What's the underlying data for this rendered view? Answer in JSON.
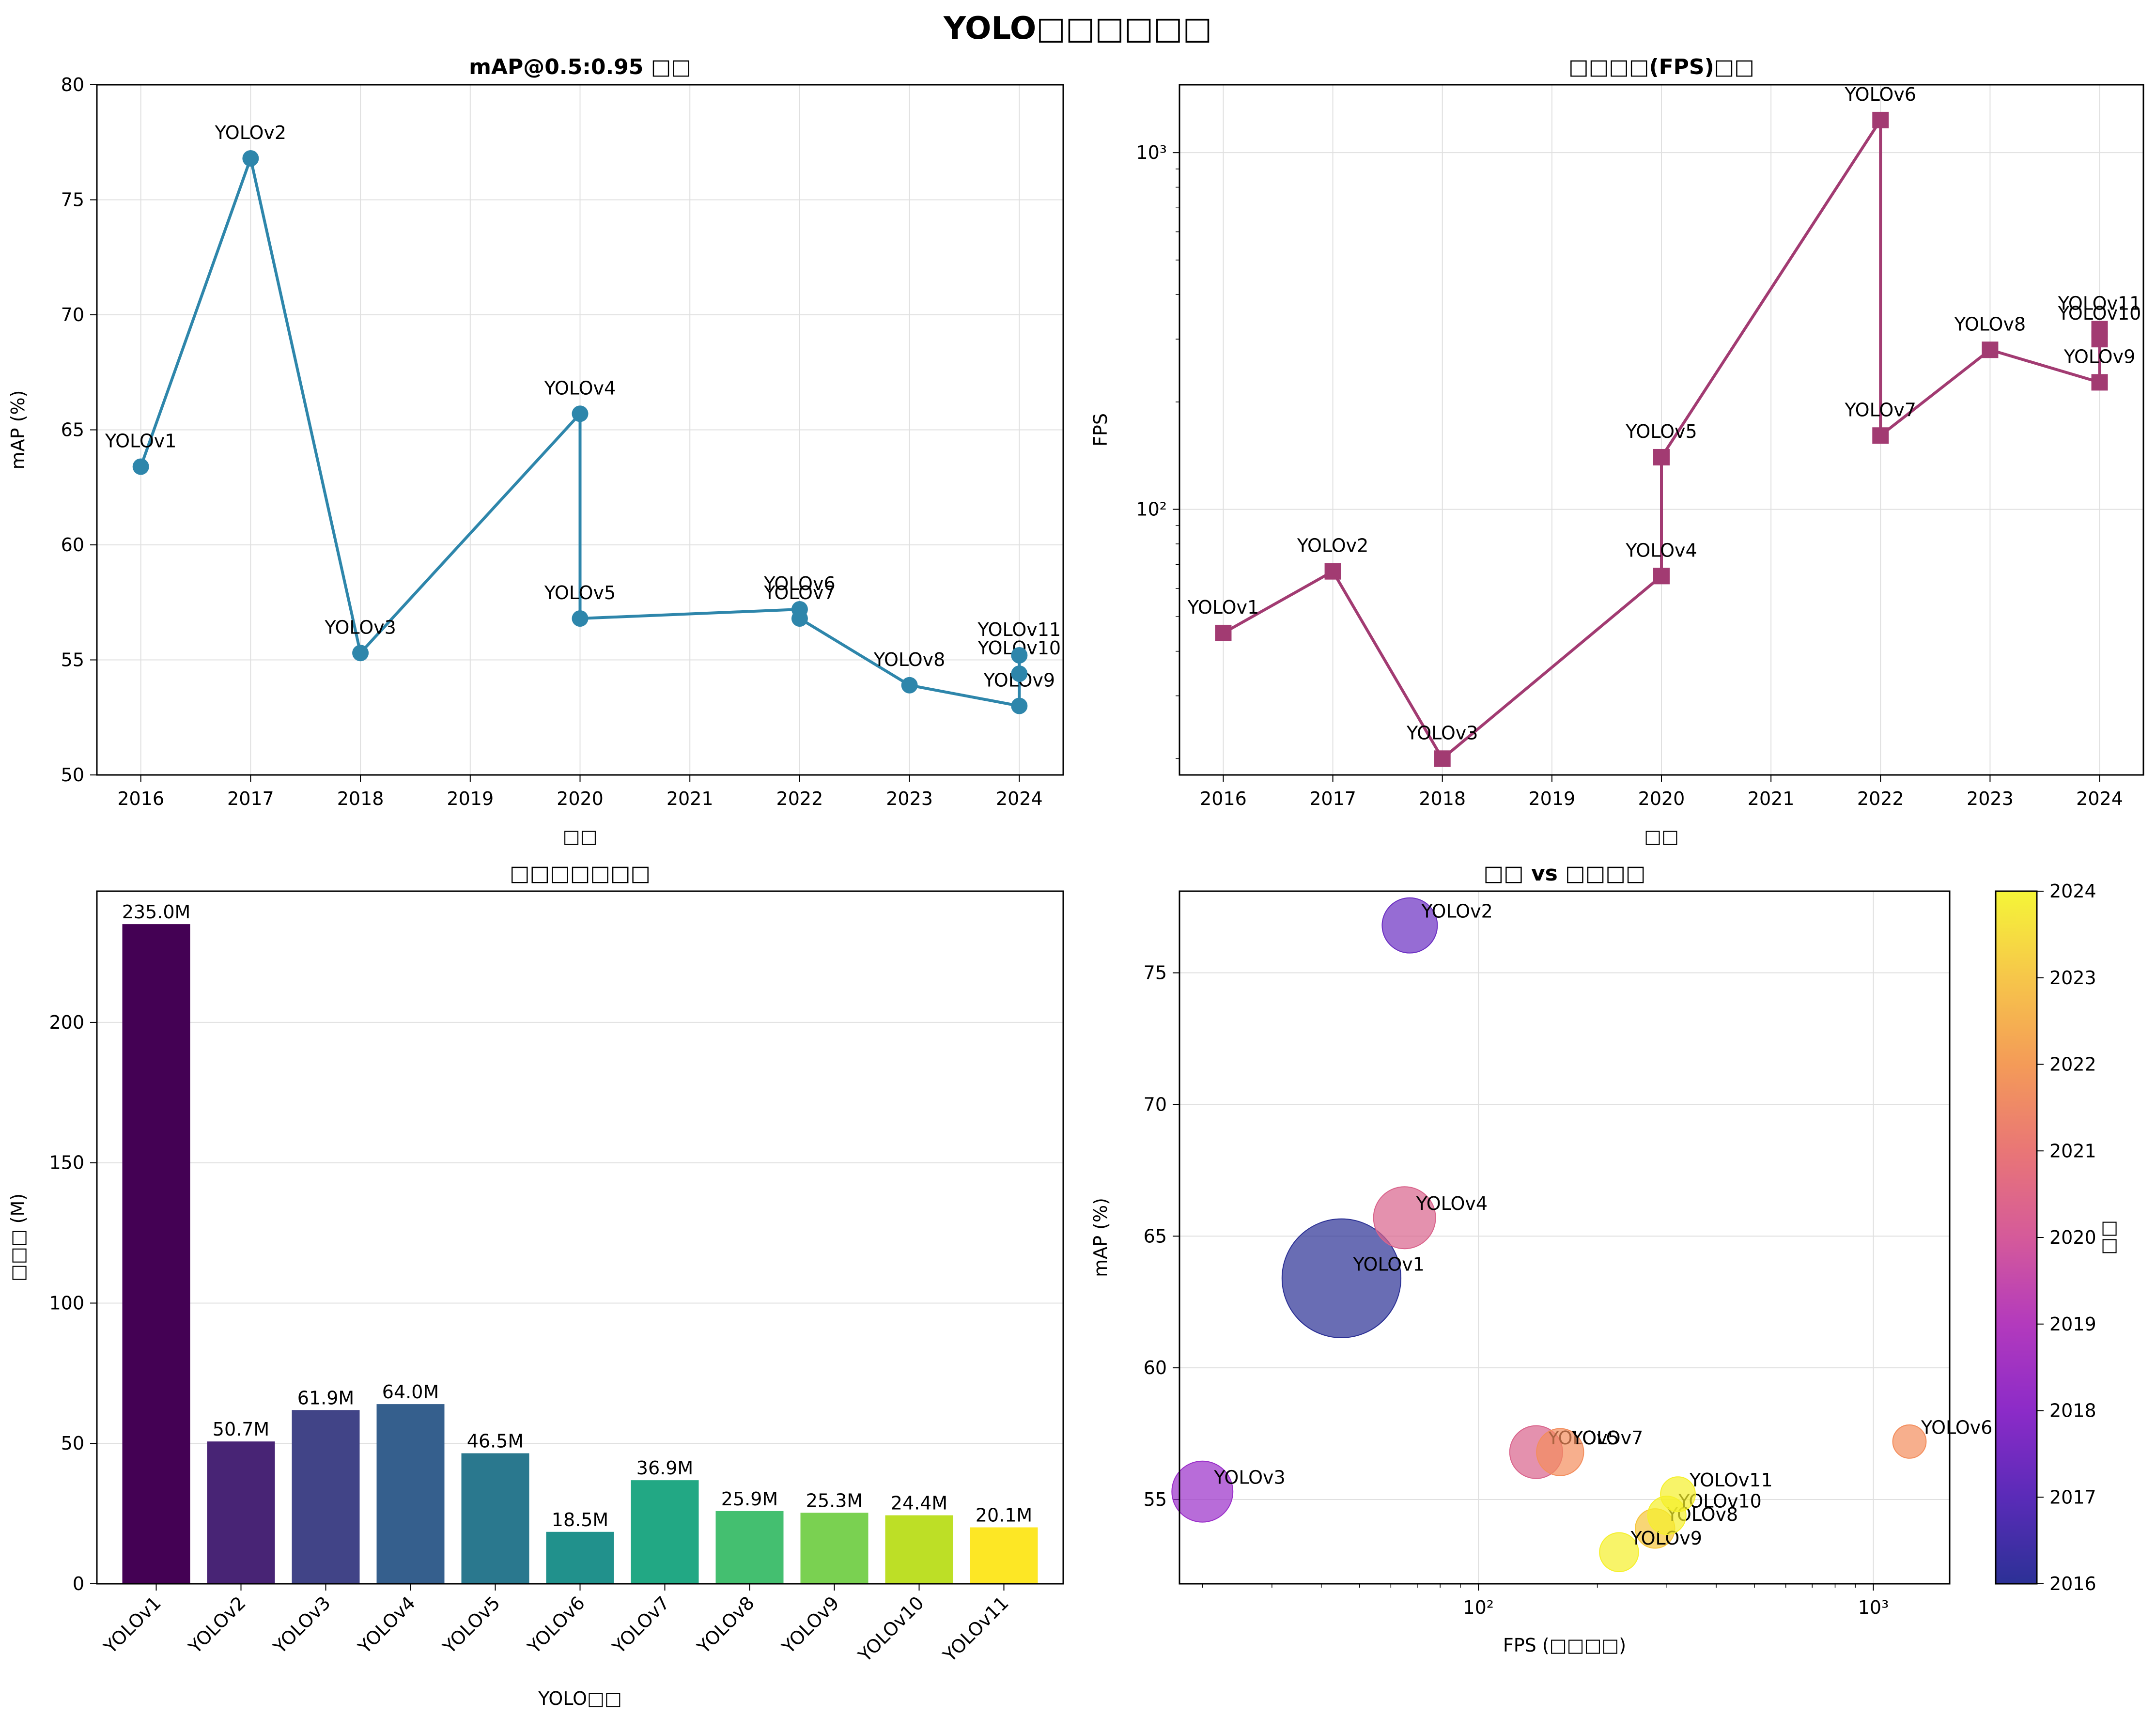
{
  "figure": {
    "suptitle": "YOLO□□□□□□"
  },
  "chart_data": [
    {
      "type": "line",
      "title": "mAP@0.5:0.95 □□",
      "xlabel": "□□",
      "ylabel": "mAP (%)",
      "xlim": [
        2015.6,
        2024.4
      ],
      "ylim": [
        50,
        80
      ],
      "xticks": [
        2016,
        2017,
        2018,
        2019,
        2020,
        2021,
        2022,
        2023,
        2024
      ],
      "yticks": [
        50,
        55,
        60,
        65,
        70,
        75,
        80
      ],
      "grid": true,
      "color": "#2e86ab",
      "marker": "circle",
      "points": [
        {
          "label": "YOLOv1",
          "x": 2016,
          "y": 63.4
        },
        {
          "label": "YOLOv2",
          "x": 2017,
          "y": 76.8
        },
        {
          "label": "YOLOv3",
          "x": 2018,
          "y": 55.3
        },
        {
          "label": "YOLOv4",
          "x": 2020,
          "y": 65.7
        },
        {
          "label": "YOLOv5",
          "x": 2020,
          "y": 56.8
        },
        {
          "label": "YOLOv6",
          "x": 2022,
          "y": 57.2
        },
        {
          "label": "YOLOv7",
          "x": 2022,
          "y": 56.8
        },
        {
          "label": "YOLOv8",
          "x": 2023,
          "y": 53.9
        },
        {
          "label": "YOLOv9",
          "x": 2024,
          "y": 53.0
        },
        {
          "label": "YOLOv10",
          "x": 2024,
          "y": 54.4
        },
        {
          "label": "YOLOv11",
          "x": 2024,
          "y": 55.2
        }
      ]
    },
    {
      "type": "line",
      "title": "□□□□(FPS)□□",
      "xlabel": "□□",
      "ylabel": "FPS",
      "xlim": [
        2015.6,
        2024.4
      ],
      "ylim": [
        18,
        1550
      ],
      "yscale": "log",
      "xticks": [
        2016,
        2017,
        2018,
        2019,
        2020,
        2021,
        2022,
        2023,
        2024
      ],
      "yticks": [
        100,
        1000
      ],
      "ytick_labels": [
        "10²",
        "10³"
      ],
      "grid": true,
      "color": "#a23b72",
      "marker": "square",
      "points": [
        {
          "label": "YOLOv1",
          "x": 2016,
          "y": 45
        },
        {
          "label": "YOLOv2",
          "x": 2017,
          "y": 67
        },
        {
          "label": "YOLOv3",
          "x": 2018,
          "y": 20
        },
        {
          "label": "YOLOv4",
          "x": 2020,
          "y": 65
        },
        {
          "label": "YOLOv5",
          "x": 2020,
          "y": 140
        },
        {
          "label": "YOLOv6",
          "x": 2022,
          "y": 1234
        },
        {
          "label": "YOLOv7",
          "x": 2022,
          "y": 161
        },
        {
          "label": "YOLOv8",
          "x": 2023,
          "y": 280
        },
        {
          "label": "YOLOv9",
          "x": 2024,
          "y": 227
        },
        {
          "label": "YOLOv10",
          "x": 2024,
          "y": 300
        },
        {
          "label": "YOLOv11",
          "x": 2024,
          "y": 320
        }
      ]
    },
    {
      "type": "bar",
      "title": "□□□□□□□",
      "xlabel": "YOLO□□",
      "ylabel": "□□□ (M)",
      "ylim": [
        0,
        246.75
      ],
      "yticks": [
        0,
        50,
        100,
        150,
        200
      ],
      "grid": true,
      "categories": [
        "YOLOv1",
        "YOLOv2",
        "YOLOv3",
        "YOLOv4",
        "YOLOv5",
        "YOLOv6",
        "YOLOv7",
        "YOLOv8",
        "YOLOv9",
        "YOLOv10",
        "YOLOv11"
      ],
      "values": [
        235.0,
        50.7,
        61.9,
        64.0,
        46.5,
        18.5,
        36.9,
        25.9,
        25.3,
        24.4,
        20.1
      ],
      "value_labels": [
        "235.0M",
        "50.7M",
        "61.9M",
        "64.0M",
        "46.5M",
        "18.5M",
        "36.9M",
        "25.9M",
        "25.3M",
        "24.4M",
        "20.1M"
      ],
      "colors": [
        "#440154",
        "#482475",
        "#414487",
        "#355f8d",
        "#2a788e",
        "#21918c",
        "#22a884",
        "#44bf70",
        "#7ad151",
        "#bddf26",
        "#fde725"
      ]
    },
    {
      "type": "scatter",
      "title": "□□ vs □□□□",
      "xlabel": "FPS (□□□□)",
      "ylabel": "mAP (%)",
      "xscale": "log",
      "xlim": [
        17.5,
        1560
      ],
      "ylim": [
        51.8,
        78.1
      ],
      "xticks": [
        100,
        1000
      ],
      "xtick_labels": [
        "10²",
        "10³"
      ],
      "yticks": [
        55,
        60,
        65,
        70,
        75
      ],
      "grid": true,
      "colorbar": {
        "label": "□□",
        "ticks": [
          2016,
          2017,
          2018,
          2019,
          2020,
          2021,
          2022,
          2023,
          2024
        ],
        "range": [
          2016,
          2024
        ]
      },
      "points": [
        {
          "label": "YOLOv1",
          "fps": 45,
          "map": 63.4,
          "year": 2016,
          "params": 235.0,
          "color": "#2a2f94"
        },
        {
          "label": "YOLOv2",
          "fps": 67,
          "map": 76.8,
          "year": 2017,
          "params": 50.7,
          "color": "#6a2dc2"
        },
        {
          "label": "YOLOv3",
          "fps": 20,
          "map": 55.3,
          "year": 2018,
          "params": 61.9,
          "color": "#9a2ec9"
        },
        {
          "label": "YOLOv4",
          "fps": 65,
          "map": 65.7,
          "year": 2020,
          "params": 64.0,
          "color": "#d9638b"
        },
        {
          "label": "YOLOv5",
          "fps": 140,
          "map": 56.8,
          "year": 2020,
          "params": 46.5,
          "color": "#d9638b"
        },
        {
          "label": "YOLOv6",
          "fps": 1234,
          "map": 57.2,
          "year": 2022,
          "params": 18.5,
          "color": "#f38d5c"
        },
        {
          "label": "YOLOv7",
          "fps": 161,
          "map": 56.8,
          "year": 2022,
          "params": 36.9,
          "color": "#f38d5c"
        },
        {
          "label": "YOLOv8",
          "fps": 280,
          "map": 53.9,
          "year": 2023,
          "params": 25.9,
          "color": "#f5c53a"
        },
        {
          "label": "YOLOv9",
          "fps": 227,
          "map": 53.0,
          "year": 2024,
          "params": 25.3,
          "color": "#f5f02a"
        },
        {
          "label": "YOLOv10",
          "fps": 300,
          "map": 54.4,
          "year": 2024,
          "params": 24.4,
          "color": "#f5f02a"
        },
        {
          "label": "YOLOv11",
          "fps": 320,
          "map": 55.2,
          "year": 2024,
          "params": 20.1,
          "color": "#f5f02a"
        }
      ]
    }
  ]
}
